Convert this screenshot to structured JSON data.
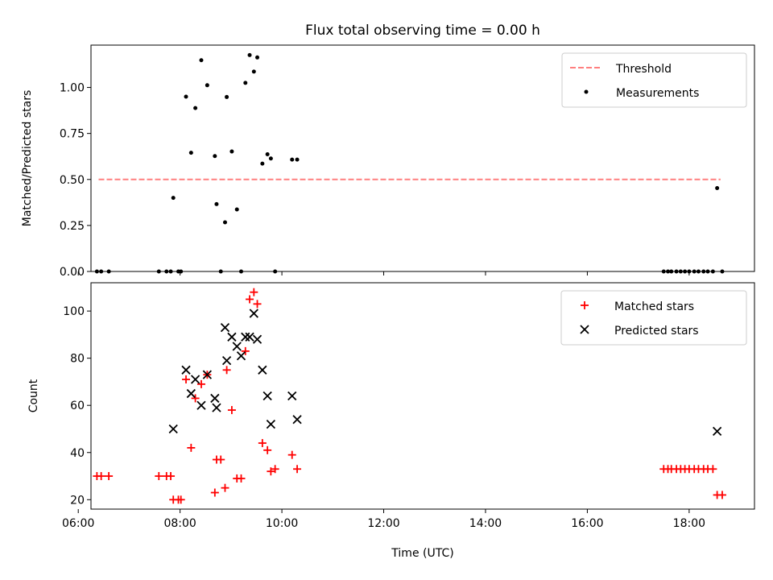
{
  "title": "Flux total observing time = 0.00 h",
  "xlabel": "Time (UTC)",
  "chart_data": [
    {
      "type": "scatter",
      "ylabel": "Matched/Predicted stars",
      "ylim": [
        0,
        1.23
      ],
      "xlim": [
        "06:15",
        "19:17"
      ],
      "x_ticks": [
        "06:00",
        "08:00",
        "10:00",
        "12:00",
        "14:00",
        "16:00",
        "18:00"
      ],
      "y_ticks": [
        "0.00",
        "0.25",
        "0.50",
        "0.75",
        "1.00"
      ],
      "legend_position": "top-right",
      "threshold": {
        "name": "Threshold",
        "value": 0.5,
        "x_start": "06:24",
        "x_end": "18:37",
        "color": "#ff7f7f"
      },
      "series": [
        {
          "name": "Measurements",
          "color": "#000000",
          "x": [
            "06:22",
            "06:27",
            "06:36",
            "07:35",
            "07:44",
            "07:49",
            "07:52",
            "07:58",
            "08:01",
            "08:07",
            "08:13",
            "08:18",
            "08:25",
            "08:32",
            "08:41",
            "08:43",
            "08:48",
            "08:53",
            "08:55",
            "09:01",
            "09:07",
            "09:12",
            "09:17",
            "09:22",
            "09:27",
            "09:31",
            "09:37",
            "09:43",
            "09:47",
            "09:52",
            "10:12",
            "10:18",
            "17:30",
            "17:35",
            "17:39",
            "17:45",
            "17:50",
            "17:55",
            "18:00",
            "18:06",
            "18:11",
            "18:17",
            "18:22",
            "18:28",
            "18:33",
            "18:39"
          ],
          "y": [
            0,
            0,
            0,
            0,
            0,
            0,
            0.4,
            0,
            0,
            0.95,
            0.645,
            0.888,
            1.148,
            1.012,
            0.627,
            0.366,
            0,
            0.267,
            0.948,
            0.652,
            0.337,
            0,
            1.025,
            1.176,
            1.086,
            1.163,
            0.586,
            0.637,
            0.614,
            0,
            0.608,
            0.608,
            0,
            0,
            0,
            0,
            0,
            0,
            0,
            0,
            0,
            0,
            0,
            0,
            0.453,
            0
          ]
        }
      ]
    },
    {
      "type": "scatter",
      "ylabel": "Count",
      "ylim": [
        16,
        112
      ],
      "xlim": [
        "06:15",
        "19:17"
      ],
      "x_ticks": [
        "06:00",
        "08:00",
        "10:00",
        "12:00",
        "14:00",
        "16:00",
        "18:00"
      ],
      "y_ticks": [
        "20",
        "40",
        "60",
        "80",
        "100"
      ],
      "legend_position": "top-right",
      "series": [
        {
          "name": "Matched stars",
          "marker": "+",
          "color": "#ff0000",
          "x": [
            "06:22",
            "06:27",
            "06:36",
            "07:35",
            "07:44",
            "07:49",
            "07:52",
            "07:58",
            "08:01",
            "08:07",
            "08:13",
            "08:18",
            "08:25",
            "08:32",
            "08:41",
            "08:43",
            "08:48",
            "08:53",
            "08:55",
            "09:01",
            "09:07",
            "09:12",
            "09:17",
            "09:22",
            "09:27",
            "09:31",
            "09:37",
            "09:43",
            "09:47",
            "09:52",
            "10:12",
            "10:18",
            "17:30",
            "17:35",
            "17:39",
            "17:45",
            "17:50",
            "17:55",
            "18:00",
            "18:06",
            "18:11",
            "18:17",
            "18:22",
            "18:28",
            "18:33",
            "18:39"
          ],
          "y": [
            30,
            30,
            30,
            30,
            30,
            30,
            20,
            20,
            20,
            71,
            42,
            63,
            69,
            73,
            23,
            37,
            37,
            25,
            75,
            58,
            29,
            29,
            83,
            105,
            108,
            103,
            44,
            41,
            32,
            33,
            39,
            33,
            33,
            33,
            33,
            33,
            33,
            33,
            33,
            33,
            33,
            33,
            33,
            33,
            22,
            22
          ]
        },
        {
          "name": "Predicted stars",
          "marker": "x",
          "color": "#000000",
          "x": [
            "07:52",
            "08:07",
            "08:13",
            "08:18",
            "08:25",
            "08:32",
            "08:41",
            "08:43",
            "08:53",
            "08:55",
            "09:01",
            "09:07",
            "09:12",
            "09:17",
            "09:22",
            "09:27",
            "09:31",
            "09:37",
            "09:43",
            "09:47",
            "10:12",
            "10:18",
            "18:33"
          ],
          "y": [
            50,
            75,
            65,
            71,
            60,
            73,
            63,
            59,
            93,
            79,
            89,
            85,
            81,
            89,
            89,
            99,
            88,
            75,
            64,
            52,
            64,
            54,
            49
          ]
        }
      ]
    }
  ]
}
